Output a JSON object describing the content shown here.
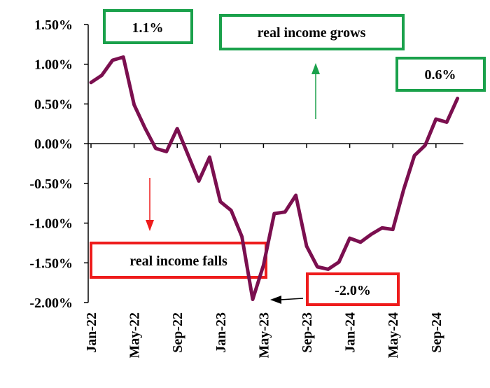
{
  "chart_data": {
    "type": "line",
    "title": "",
    "xlabel": "",
    "ylabel": "",
    "ylim": [
      -2.0,
      1.5
    ],
    "y_ticks": [
      "1.50%",
      "1.00%",
      "0.50%",
      "0.00%",
      "-0.50%",
      "-1.00%",
      "-1.50%",
      "-2.00%"
    ],
    "y_tick_values": [
      1.5,
      1.0,
      0.5,
      0.0,
      -0.5,
      -1.0,
      -1.5,
      -2.0
    ],
    "x_tick_labels": [
      "Jan-22",
      "May-22",
      "Sep-22",
      "Jan-23",
      "May-23",
      "Sep-23",
      "Jan-24",
      "May-24",
      "Sep-24"
    ],
    "x": [
      "Jan-22",
      "Feb-22",
      "Mar-22",
      "Apr-22",
      "May-22",
      "Jun-22",
      "Jul-22",
      "Aug-22",
      "Sep-22",
      "Oct-22",
      "Nov-22",
      "Dec-22",
      "Jan-23",
      "Feb-23",
      "Mar-23",
      "Apr-23",
      "May-23",
      "Jun-23",
      "Jul-23",
      "Aug-23",
      "Sep-23",
      "Oct-23",
      "Nov-23",
      "Dec-23",
      "Jan-24",
      "Feb-24",
      "Mar-24",
      "Apr-24",
      "May-24",
      "Jun-24",
      "Jul-24",
      "Aug-24",
      "Sep-24",
      "Oct-24",
      "Nov-24"
    ],
    "series": [
      {
        "values": [
          0.77,
          0.86,
          1.05,
          1.09,
          0.49,
          0.2,
          -0.06,
          -0.1,
          0.19,
          -0.14,
          -0.47,
          -0.17,
          -0.73,
          -0.84,
          -1.17,
          -1.96,
          -1.53,
          -0.88,
          -0.86,
          -0.65,
          -1.29,
          -1.55,
          -1.58,
          -1.49,
          -1.19,
          -1.24,
          -1.14,
          -1.06,
          -1.08,
          -0.58,
          -0.15,
          -0.02,
          0.31,
          0.27,
          0.57
        ],
        "color": "#7b0f4f"
      }
    ],
    "grid": false,
    "annotations": [
      {
        "text": "1.1%",
        "border_color": "#1aa14b"
      },
      {
        "text": "real income grows",
        "border_color": "#1aa14b",
        "arrow": "up",
        "arrow_color": "#1aa14b"
      },
      {
        "text": "0.6%",
        "border_color": "#1aa14b"
      },
      {
        "text": "real income falls",
        "border_color": "#ee1c1c",
        "arrow": "down",
        "arrow_color": "#ee1c1c"
      },
      {
        "text": "-2.0%",
        "border_color": "#ee1c1c",
        "arrow": "left",
        "arrow_color": "#000000"
      }
    ]
  }
}
